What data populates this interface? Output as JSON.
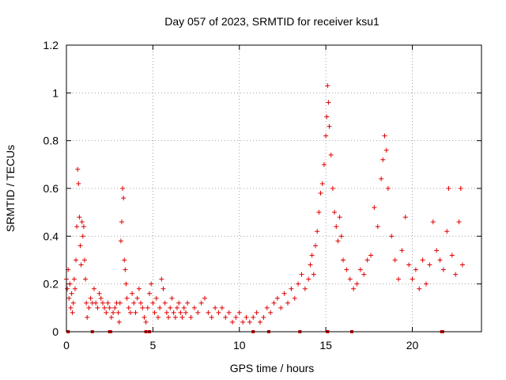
{
  "chart_data": {
    "type": "scatter",
    "title": "Day 057 of 2023, SRMTID for receiver ksu1",
    "xlabel": "GPS time / hours",
    "ylabel": "SRMTID / TECUs",
    "xlim": [
      0,
      24
    ],
    "ylim": [
      0,
      1.2
    ],
    "xticks": [
      0,
      5,
      10,
      15,
      20
    ],
    "yticks": [
      0,
      0.2,
      0.4,
      0.6,
      0.8,
      1,
      1.2
    ],
    "xtick_labels": [
      "0",
      "5",
      "10",
      "15",
      "20"
    ],
    "ytick_labels": [
      "0",
      "0.2",
      "0.4",
      "0.6",
      "0.8",
      "1",
      "1.2"
    ],
    "grid": true,
    "marker": "+",
    "series": [
      {
        "name": "ksu1",
        "color": "#e00000",
        "points": [
          [
            0.0,
            0.22
          ],
          [
            0.05,
            0.18
          ],
          [
            0.1,
            0.26
          ],
          [
            0.15,
            0.14
          ],
          [
            0.2,
            0.2
          ],
          [
            0.25,
            0.1
          ],
          [
            0.3,
            0.16
          ],
          [
            0.35,
            0.08
          ],
          [
            0.4,
            0.12
          ],
          [
            0.45,
            0.22
          ],
          [
            0.5,
            0.18
          ],
          [
            0.55,
            0.3
          ],
          [
            0.6,
            0.44
          ],
          [
            0.65,
            0.68
          ],
          [
            0.7,
            0.62
          ],
          [
            0.75,
            0.48
          ],
          [
            0.8,
            0.36
          ],
          [
            0.85,
            0.28
          ],
          [
            0.9,
            0.46
          ],
          [
            0.95,
            0.4
          ],
          [
            1.0,
            0.44
          ],
          [
            1.05,
            0.3
          ],
          [
            1.1,
            0.22
          ],
          [
            1.15,
            0.12
          ],
          [
            1.2,
            0.06
          ],
          [
            1.3,
            0.1
          ],
          [
            1.4,
            0.14
          ],
          [
            1.5,
            0.12
          ],
          [
            1.6,
            0.18
          ],
          [
            1.7,
            0.12
          ],
          [
            1.8,
            0.1
          ],
          [
            1.9,
            0.16
          ],
          [
            2.0,
            0.14
          ],
          [
            2.1,
            0.12
          ],
          [
            2.2,
            0.1
          ],
          [
            2.3,
            0.08
          ],
          [
            2.4,
            0.12
          ],
          [
            2.5,
            0.1
          ],
          [
            2.6,
            0.06
          ],
          [
            2.7,
            0.08
          ],
          [
            2.8,
            0.1
          ],
          [
            2.9,
            0.12
          ],
          [
            3.0,
            0.08
          ],
          [
            3.05,
            0.04
          ],
          [
            3.1,
            0.12
          ],
          [
            3.15,
            0.38
          ],
          [
            3.2,
            0.46
          ],
          [
            3.25,
            0.6
          ],
          [
            3.3,
            0.56
          ],
          [
            3.35,
            0.3
          ],
          [
            3.4,
            0.26
          ],
          [
            3.45,
            0.2
          ],
          [
            3.5,
            0.14
          ],
          [
            3.6,
            0.1
          ],
          [
            3.7,
            0.08
          ],
          [
            3.8,
            0.16
          ],
          [
            3.9,
            0.12
          ],
          [
            4.0,
            0.08
          ],
          [
            4.1,
            0.14
          ],
          [
            4.2,
            0.18
          ],
          [
            4.3,
            0.12
          ],
          [
            4.4,
            0.1
          ],
          [
            4.5,
            0.06
          ],
          [
            4.6,
            0.04
          ],
          [
            4.7,
            0.1
          ],
          [
            4.8,
            0.16
          ],
          [
            4.9,
            0.2
          ],
          [
            5.0,
            0.12
          ],
          [
            5.1,
            0.08
          ],
          [
            5.2,
            0.14
          ],
          [
            5.3,
            0.06
          ],
          [
            5.4,
            0.1
          ],
          [
            5.5,
            0.22
          ],
          [
            5.6,
            0.18
          ],
          [
            5.7,
            0.12
          ],
          [
            5.8,
            0.08
          ],
          [
            5.9,
            0.06
          ],
          [
            6.0,
            0.1
          ],
          [
            6.1,
            0.14
          ],
          [
            6.2,
            0.08
          ],
          [
            6.3,
            0.06
          ],
          [
            6.4,
            0.1
          ],
          [
            6.5,
            0.12
          ],
          [
            6.6,
            0.08
          ],
          [
            6.7,
            0.06
          ],
          [
            6.8,
            0.1
          ],
          [
            6.9,
            0.08
          ],
          [
            7.0,
            0.12
          ],
          [
            7.2,
            0.06
          ],
          [
            7.4,
            0.1
          ],
          [
            7.6,
            0.08
          ],
          [
            7.8,
            0.12
          ],
          [
            8.0,
            0.14
          ],
          [
            8.2,
            0.08
          ],
          [
            8.4,
            0.06
          ],
          [
            8.6,
            0.1
          ],
          [
            8.8,
            0.08
          ],
          [
            9.0,
            0.1
          ],
          [
            9.2,
            0.06
          ],
          [
            9.4,
            0.08
          ],
          [
            9.6,
            0.04
          ],
          [
            9.8,
            0.06
          ],
          [
            10.0,
            0.08
          ],
          [
            10.2,
            0.04
          ],
          [
            10.4,
            0.06
          ],
          [
            10.6,
            0.04
          ],
          [
            10.8,
            0.06
          ],
          [
            11.0,
            0.08
          ],
          [
            11.2,
            0.04
          ],
          [
            11.4,
            0.06
          ],
          [
            11.6,
            0.1
          ],
          [
            11.8,
            0.08
          ],
          [
            12.0,
            0.12
          ],
          [
            12.2,
            0.14
          ],
          [
            12.4,
            0.1
          ],
          [
            12.6,
            0.16
          ],
          [
            12.8,
            0.12
          ],
          [
            13.0,
            0.18
          ],
          [
            13.2,
            0.14
          ],
          [
            13.4,
            0.2
          ],
          [
            13.6,
            0.24
          ],
          [
            13.8,
            0.18
          ],
          [
            14.0,
            0.22
          ],
          [
            14.1,
            0.28
          ],
          [
            14.2,
            0.32
          ],
          [
            14.3,
            0.24
          ],
          [
            14.4,
            0.36
          ],
          [
            14.5,
            0.42
          ],
          [
            14.6,
            0.5
          ],
          [
            14.7,
            0.58
          ],
          [
            14.8,
            0.62
          ],
          [
            14.9,
            0.7
          ],
          [
            15.0,
            0.82
          ],
          [
            15.05,
            0.9
          ],
          [
            15.1,
            1.03
          ],
          [
            15.15,
            0.96
          ],
          [
            15.2,
            0.86
          ],
          [
            15.3,
            0.74
          ],
          [
            15.4,
            0.6
          ],
          [
            15.5,
            0.5
          ],
          [
            15.6,
            0.44
          ],
          [
            15.7,
            0.38
          ],
          [
            15.8,
            0.48
          ],
          [
            15.9,
            0.4
          ],
          [
            16.0,
            0.3
          ],
          [
            16.2,
            0.26
          ],
          [
            16.4,
            0.22
          ],
          [
            16.6,
            0.18
          ],
          [
            16.8,
            0.2
          ],
          [
            17.0,
            0.26
          ],
          [
            17.2,
            0.24
          ],
          [
            17.4,
            0.3
          ],
          [
            17.6,
            0.32
          ],
          [
            17.8,
            0.52
          ],
          [
            18.0,
            0.44
          ],
          [
            18.2,
            0.64
          ],
          [
            18.3,
            0.72
          ],
          [
            18.4,
            0.82
          ],
          [
            18.5,
            0.76
          ],
          [
            18.6,
            0.6
          ],
          [
            18.8,
            0.4
          ],
          [
            19.0,
            0.3
          ],
          [
            19.2,
            0.22
          ],
          [
            19.4,
            0.34
          ],
          [
            19.6,
            0.48
          ],
          [
            19.8,
            0.28
          ],
          [
            20.0,
            0.22
          ],
          [
            20.2,
            0.26
          ],
          [
            20.4,
            0.18
          ],
          [
            20.6,
            0.3
          ],
          [
            20.8,
            0.2
          ],
          [
            21.0,
            0.28
          ],
          [
            21.2,
            0.46
          ],
          [
            21.4,
            0.34
          ],
          [
            21.6,
            0.3
          ],
          [
            21.8,
            0.26
          ],
          [
            22.0,
            0.42
          ],
          [
            22.1,
            0.6
          ],
          [
            22.3,
            0.32
          ],
          [
            22.5,
            0.24
          ],
          [
            22.7,
            0.46
          ],
          [
            22.8,
            0.6
          ],
          [
            22.9,
            0.28
          ]
        ]
      }
    ],
    "bottom_markers_x": [
      0.1,
      1.5,
      2.5,
      2.55,
      4.6,
      4.8,
      10.8,
      11.7,
      13.5,
      15.1,
      16.5,
      21.7,
      21.75
    ]
  }
}
